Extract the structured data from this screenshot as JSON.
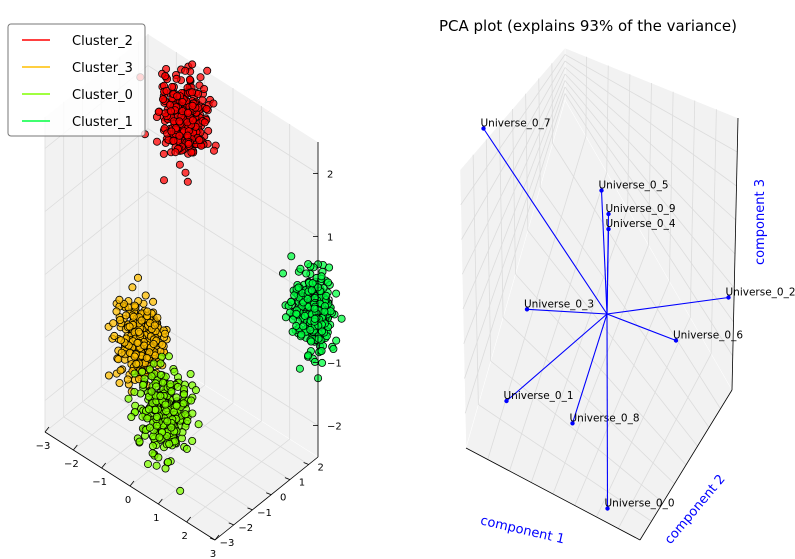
{
  "chart_data": [
    {
      "type": "scatter",
      "subtype": "3d",
      "title": "",
      "legend": {
        "placement": "top-left",
        "frame": true
      },
      "x_ticks": [
        "−3",
        "−2",
        "−1",
        "0",
        "1",
        "2",
        "3"
      ],
      "y_ticks": [
        "−3",
        "−2",
        "−1",
        "0",
        "1",
        "2"
      ],
      "z_ticks": [
        "−2",
        "−1",
        "0",
        "1",
        "2"
      ],
      "xlim": [
        -3,
        3
      ],
      "ylim": [
        -3,
        2.5
      ],
      "zlim": [
        -2.5,
        2.5
      ],
      "grid": true,
      "series": [
        {
          "name": "Cluster_2",
          "color": "#ff0000",
          "center": [
            -1.0,
            1.4,
            2.0
          ],
          "spread": [
            0.35,
            0.35,
            0.3
          ],
          "n": 320
        },
        {
          "name": "Cluster_3",
          "color": "#ffbf00",
          "center": [
            -1.0,
            -0.9,
            -1.0
          ],
          "spread": [
            0.35,
            0.35,
            0.3
          ],
          "n": 320
        },
        {
          "name": "Cluster_0",
          "color": "#80ff00",
          "center": [
            0.3,
            -1.6,
            -1.6
          ],
          "spread": [
            0.35,
            0.35,
            0.3
          ],
          "n": 320
        },
        {
          "name": "Cluster_1",
          "color": "#00ff40",
          "center": [
            2.9,
            2.4,
            -0.2
          ],
          "spread": [
            0.3,
            0.3,
            0.3
          ],
          "n": 320
        }
      ]
    },
    {
      "type": "line",
      "subtype": "3d-loadings",
      "title": "PCA plot (explains 93% of the variance)",
      "xlabel": "component 1",
      "ylabel": "component 2",
      "zlabel": "component 3",
      "origin": [
        0,
        0,
        0
      ],
      "vectors": [
        {
          "label": "Universe_0_7",
          "xyz": [
            -0.85,
            -0.15,
            0.75
          ]
        },
        {
          "label": "Universe_0_5",
          "xyz": [
            -0.05,
            0.05,
            0.55
          ]
        },
        {
          "label": "Universe_0_9",
          "xyz": [
            0.0,
            0.05,
            0.45
          ]
        },
        {
          "label": "Universe_0_4",
          "xyz": [
            0.0,
            0.05,
            0.38
          ]
        },
        {
          "label": "Universe_0_2",
          "xyz": [
            0.75,
            0.55,
            0.05
          ]
        },
        {
          "label": "Universe_0_6",
          "xyz": [
            0.45,
            0.2,
            -0.1
          ]
        },
        {
          "label": "Universe_0_3",
          "xyz": [
            -0.55,
            -0.1,
            -0.05
          ]
        },
        {
          "label": "Universe_0_1",
          "xyz": [
            -0.6,
            -0.55,
            -0.35
          ]
        },
        {
          "label": "Universe_0_8",
          "xyz": [
            -0.15,
            -0.45,
            -0.4
          ]
        },
        {
          "label": "Universe_0_0",
          "xyz": [
            0.1,
            -0.45,
            -0.75
          ]
        }
      ]
    }
  ]
}
